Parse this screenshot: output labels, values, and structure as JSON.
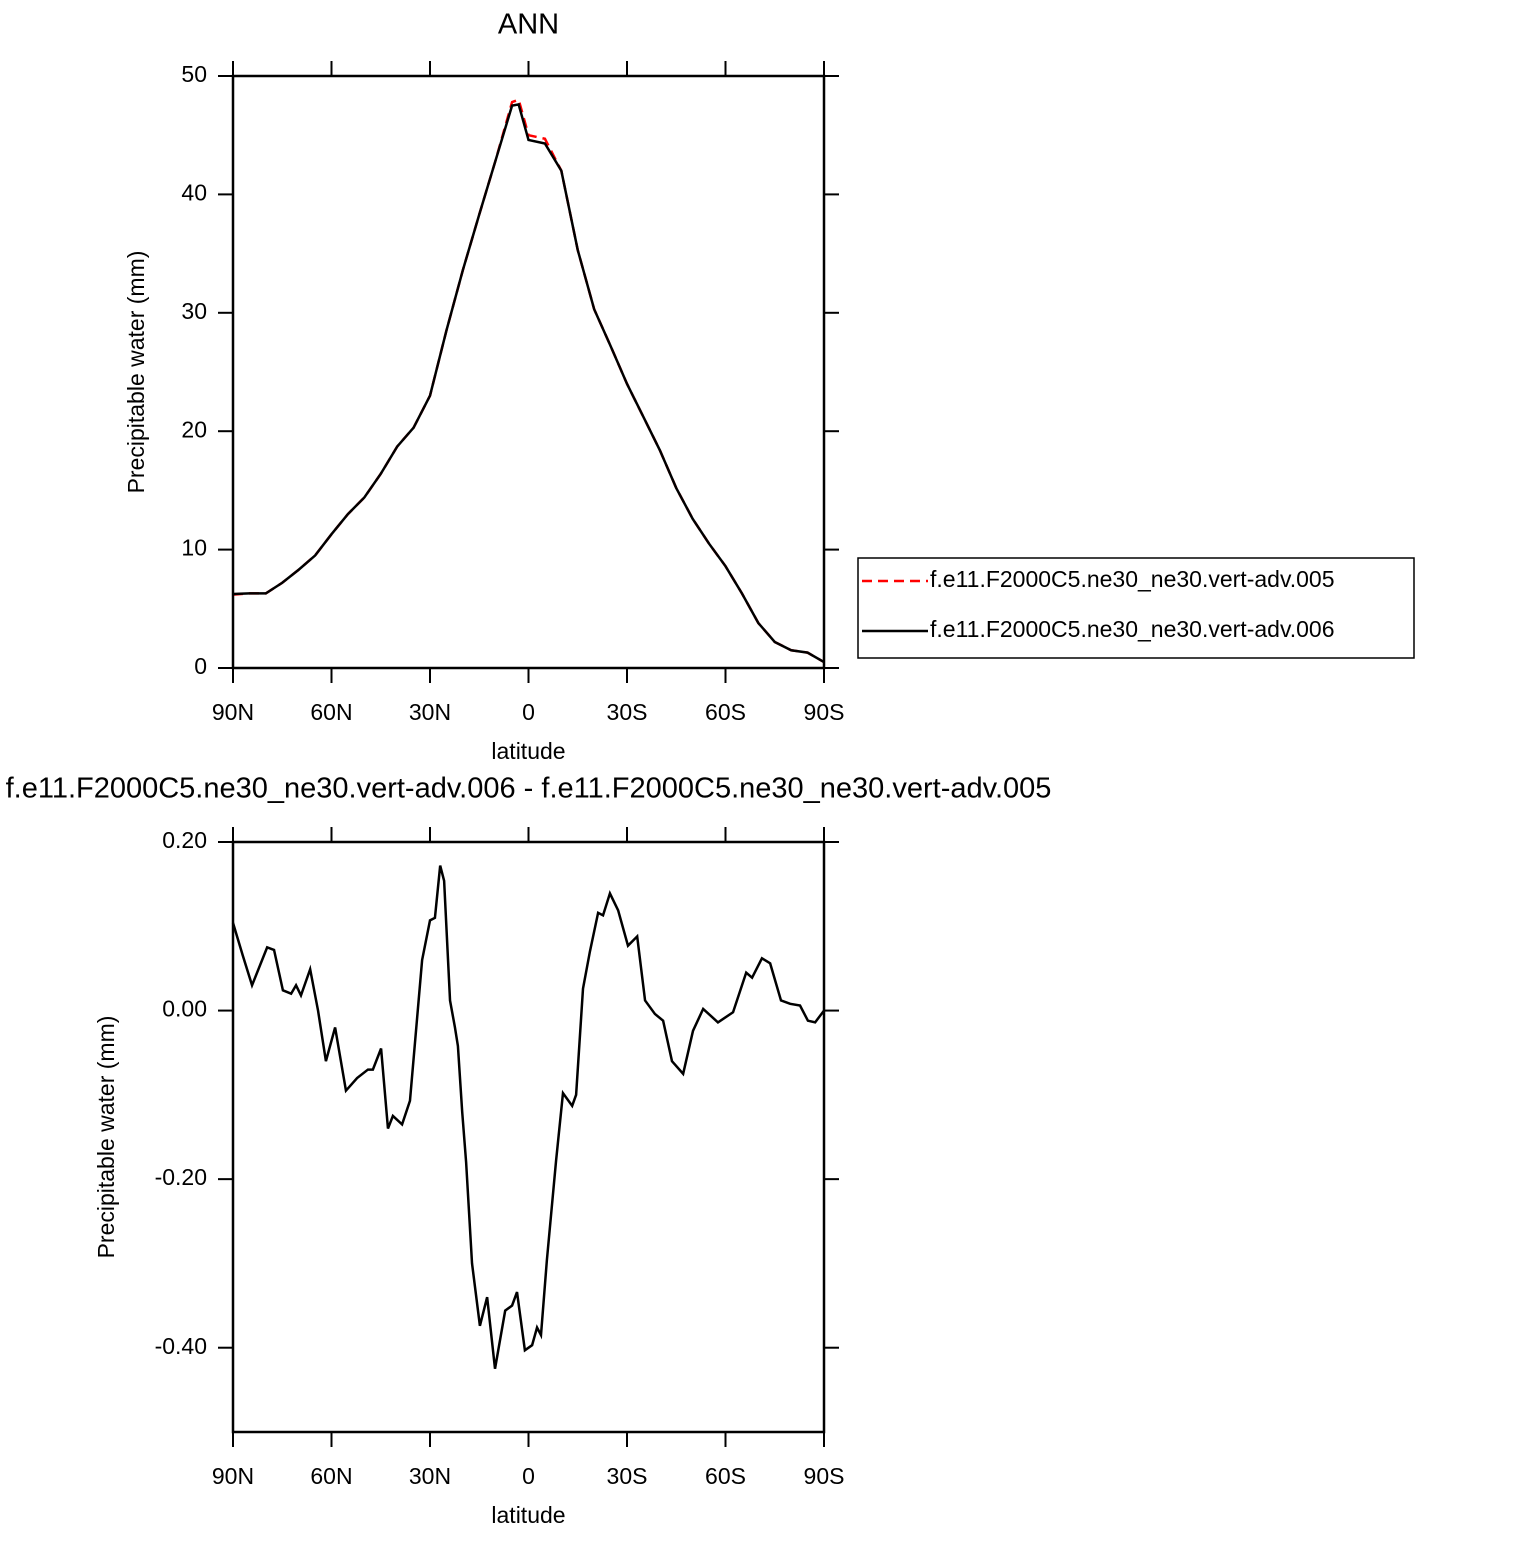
{
  "chart_data": [
    {
      "type": "line",
      "title": "ANN",
      "xlabel": "latitude",
      "ylabel": "Precipitable water (mm)",
      "x": [
        90,
        85,
        80,
        75,
        70,
        65,
        60,
        55,
        50,
        45,
        40,
        35,
        30,
        25,
        20,
        15,
        10,
        5,
        3,
        0,
        -5,
        -10,
        -15,
        -20,
        -25,
        -30,
        -35,
        -40,
        -45,
        -50,
        -55,
        -60,
        -65,
        -70,
        -75,
        -80,
        -85,
        -90
      ],
      "series": [
        {
          "name": "f.e11.F2000C5.ne30_ne30.vert-adv.005",
          "color": "#ff0000",
          "dash": "dashed",
          "values": [
            6.2,
            6.3,
            6.3,
            7.2,
            8.3,
            9.5,
            11.3,
            13.0,
            14.4,
            16.4,
            18.7,
            20.3,
            23.0,
            28.5,
            33.6,
            38.3,
            42.9,
            47.8,
            48.0,
            45.0,
            44.7,
            42.0,
            35.3,
            30.3,
            27.2,
            24.0,
            21.2,
            18.4,
            15.2,
            12.6,
            10.5,
            8.6,
            6.3,
            3.8,
            2.2,
            1.5,
            1.3,
            0.5
          ]
        },
        {
          "name": "f.e11.F2000C5.ne30_ne30.vert-adv.006",
          "color": "#000000",
          "dash": "solid",
          "values": [
            6.25,
            6.3,
            6.3,
            7.2,
            8.3,
            9.5,
            11.3,
            13.0,
            14.4,
            16.4,
            18.7,
            20.3,
            23.0,
            28.5,
            33.6,
            38.3,
            42.9,
            47.5,
            47.6,
            44.6,
            44.3,
            42.0,
            35.3,
            30.3,
            27.2,
            24.0,
            21.2,
            18.4,
            15.2,
            12.6,
            10.5,
            8.6,
            6.3,
            3.8,
            2.2,
            1.5,
            1.3,
            0.5
          ]
        }
      ],
      "xlim": [
        90,
        -90
      ],
      "xticks": [
        {
          "value": 90,
          "label": "90N"
        },
        {
          "value": 60,
          "label": "60N"
        },
        {
          "value": 30,
          "label": "30N"
        },
        0,
        {
          "value": -30,
          "label": "30S"
        },
        {
          "value": -60,
          "label": "60S"
        },
        {
          "value": -90,
          "label": "90S"
        }
      ],
      "ylim": [
        0,
        50
      ],
      "yticks": [
        0,
        10,
        20,
        30,
        40,
        50
      ],
      "legend": "right"
    },
    {
      "type": "line",
      "title": "f.e11.F2000C5.ne30_ne30.vert-adv.006 - f.e11.F2000C5.ne30_ne30.vert-adv.005",
      "xlabel": "latitude",
      "ylabel": "Precipitable water (mm)",
      "x": [
        90,
        87,
        84.2,
        79.6,
        77.5,
        74.8,
        72.3,
        70.8,
        69.3,
        66.5,
        64.1,
        61.7,
        58.9,
        55.6,
        52.2,
        48.9,
        47.4,
        44.9,
        42.8,
        41.3,
        38.5,
        36.1,
        32.4,
        30,
        28.5,
        26.9,
        25.7,
        23.9,
        22.4,
        21.5,
        20.2,
        19,
        17.2,
        14.8,
        12.6,
        10.2,
        7.1,
        5,
        3.5,
        1.1,
        -1.1,
        -2.6,
        -3.8,
        -5.6,
        -8.4,
        -10.5,
        -13.3,
        -14.5,
        -16.6,
        -18.7,
        -21.2,
        -22.7,
        -24.8,
        -27.3,
        -30.3,
        -33.1,
        -35.5,
        -38.5,
        -41,
        -43.7,
        -47.1,
        -50.1,
        -53.2,
        -57.7,
        -62.3,
        -66.3,
        -68.1,
        -71.1,
        -73.6,
        -76.9,
        -79.7,
        -82.7,
        -85.1,
        -87.3,
        -90
      ],
      "series": [
        {
          "color": "#000000",
          "dash": "solid",
          "values": [
            0.104,
            0.065,
            0.03,
            0.075,
            0.072,
            0.024,
            0.02,
            0.03,
            0.018,
            0.049,
            0,
            -0.06,
            -0.02,
            -0.095,
            -0.08,
            -0.07,
            -0.07,
            -0.045,
            -0.14,
            -0.125,
            -0.135,
            -0.107,
            0.06,
            0.107,
            0.11,
            0.172,
            0.154,
            0.012,
            -0.02,
            -0.042,
            -0.12,
            -0.18,
            -0.3,
            -0.374,
            -0.34,
            -0.425,
            -0.356,
            -0.35,
            -0.334,
            -0.403,
            -0.397,
            -0.376,
            -0.385,
            -0.296,
            -0.178,
            -0.098,
            -0.113,
            -0.1,
            0.026,
            0.07,
            0.116,
            0.113,
            0.139,
            0.119,
            0.077,
            0.088,
            0.012,
            -0.004,
            -0.012,
            -0.06,
            -0.075,
            -0.024,
            0.002,
            -0.014,
            -0.002,
            0.045,
            0.039,
            0.062,
            0.056,
            0.012,
            0.008,
            0.006,
            -0.012,
            -0.014,
            0
          ]
        }
      ],
      "xlim": [
        90,
        -90
      ],
      "xticks": [
        {
          "value": 90,
          "label": "90N"
        },
        {
          "value": 60,
          "label": "60N"
        },
        {
          "value": 30,
          "label": "30N"
        },
        0,
        {
          "value": -30,
          "label": "30S"
        },
        {
          "value": -60,
          "label": "60S"
        },
        {
          "value": -90,
          "label": "90S"
        }
      ],
      "ylim": [
        -0.5,
        0.2
      ],
      "yticks": [
        {
          "value": 0.2,
          "label": "0.20"
        },
        {
          "value": 0,
          "label": "0.00"
        },
        {
          "value": -0.2,
          "label": "-0.20"
        },
        {
          "value": -0.4,
          "label": "-0.40"
        }
      ]
    }
  ]
}
